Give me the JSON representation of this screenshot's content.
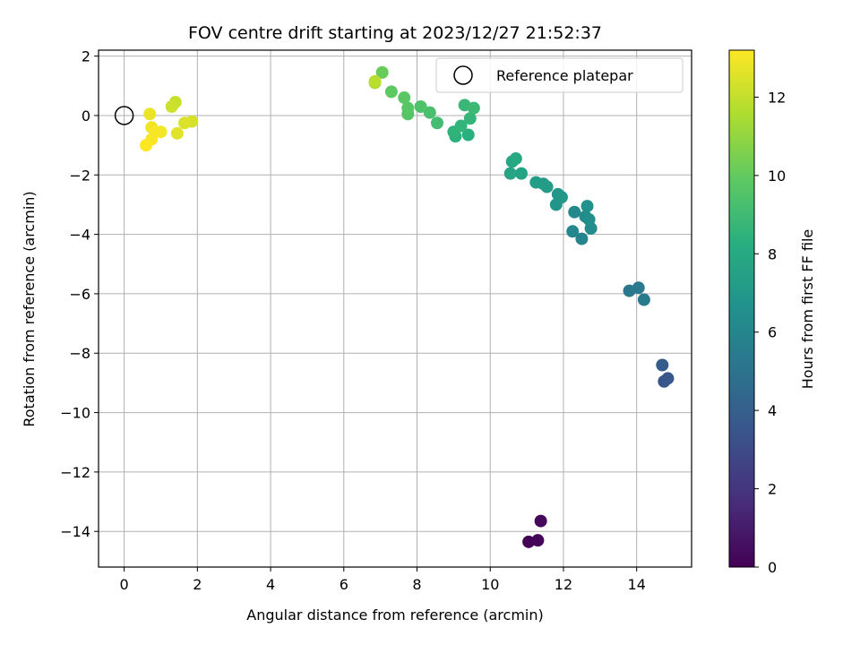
{
  "chart_data": {
    "type": "scatter",
    "title": "FOV centre drift starting at 2023/12/27 21:52:37",
    "xlabel": "Angular distance from reference (arcmin)",
    "ylabel": "Rotation from reference (arcmin)",
    "xlim": [
      -0.7,
      15.5
    ],
    "ylim": [
      -15.2,
      2.2
    ],
    "xticks": [
      0,
      2,
      4,
      6,
      8,
      10,
      12,
      14
    ],
    "yticks": [
      2,
      0,
      -2,
      -4,
      -6,
      -8,
      -10,
      -12,
      -14
    ],
    "grid": true,
    "legend": {
      "placement": "top-right",
      "entries": [
        {
          "label": "Reference platepar",
          "marker": "open-circle"
        }
      ]
    },
    "reference_point": {
      "x": 0,
      "y": 0
    },
    "colorbar": {
      "label": "Hours from first FF file",
      "range": [
        0,
        13.2
      ],
      "ticks": [
        0,
        2,
        4,
        6,
        8,
        10,
        12
      ],
      "colormap": "viridis"
    },
    "points": [
      {
        "x": 11.05,
        "y": -14.35,
        "h": 0.1
      },
      {
        "x": 11.3,
        "y": -14.3,
        "h": 0.2
      },
      {
        "x": 11.38,
        "y": -13.65,
        "h": 0.3
      },
      {
        "x": 14.75,
        "y": -8.95,
        "h": 3.5
      },
      {
        "x": 14.85,
        "y": -8.85,
        "h": 3.6
      },
      {
        "x": 14.7,
        "y": -8.4,
        "h": 3.8
      },
      {
        "x": 13.8,
        "y": -5.9,
        "h": 5.2
      },
      {
        "x": 14.05,
        "y": -5.8,
        "h": 5.3
      },
      {
        "x": 14.2,
        "y": -6.2,
        "h": 5.4
      },
      {
        "x": 12.5,
        "y": -4.15,
        "h": 5.9
      },
      {
        "x": 12.25,
        "y": -3.9,
        "h": 6.0
      },
      {
        "x": 12.3,
        "y": -3.25,
        "h": 6.1
      },
      {
        "x": 12.6,
        "y": -3.4,
        "h": 6.3
      },
      {
        "x": 12.75,
        "y": -3.8,
        "h": 6.4
      },
      {
        "x": 12.7,
        "y": -3.5,
        "h": 6.5
      },
      {
        "x": 12.65,
        "y": -3.05,
        "h": 6.6
      },
      {
        "x": 11.8,
        "y": -3.0,
        "h": 6.8
      },
      {
        "x": 11.85,
        "y": -2.65,
        "h": 6.9
      },
      {
        "x": 11.95,
        "y": -2.75,
        "h": 7.0
      },
      {
        "x": 11.45,
        "y": -2.3,
        "h": 7.1
      },
      {
        "x": 11.55,
        "y": -2.4,
        "h": 7.2
      },
      {
        "x": 11.25,
        "y": -2.25,
        "h": 7.3
      },
      {
        "x": 10.85,
        "y": -1.95,
        "h": 7.6
      },
      {
        "x": 10.55,
        "y": -1.95,
        "h": 7.7
      },
      {
        "x": 10.6,
        "y": -1.55,
        "h": 7.8
      },
      {
        "x": 10.7,
        "y": -1.45,
        "h": 7.9
      },
      {
        "x": 9.4,
        "y": -0.65,
        "h": 8.3
      },
      {
        "x": 9.05,
        "y": -0.7,
        "h": 8.4
      },
      {
        "x": 9.0,
        "y": -0.55,
        "h": 8.5
      },
      {
        "x": 9.2,
        "y": -0.35,
        "h": 8.6
      },
      {
        "x": 9.45,
        "y": -0.1,
        "h": 8.7
      },
      {
        "x": 9.3,
        "y": 0.35,
        "h": 8.8
      },
      {
        "x": 9.55,
        "y": 0.25,
        "h": 8.9
      },
      {
        "x": 8.55,
        "y": -0.25,
        "h": 9.1
      },
      {
        "x": 8.35,
        "y": 0.1,
        "h": 9.3
      },
      {
        "x": 8.1,
        "y": 0.3,
        "h": 9.4
      },
      {
        "x": 7.75,
        "y": 0.05,
        "h": 9.6
      },
      {
        "x": 7.75,
        "y": 0.25,
        "h": 9.7
      },
      {
        "x": 7.65,
        "y": 0.6,
        "h": 9.8
      },
      {
        "x": 7.3,
        "y": 0.8,
        "h": 9.9
      },
      {
        "x": 7.05,
        "y": 1.45,
        "h": 10.1
      },
      {
        "x": 6.85,
        "y": 1.1,
        "h": 11.6
      },
      {
        "x": 6.85,
        "y": 1.15,
        "h": 11.8
      },
      {
        "x": 1.4,
        "y": 0.45,
        "h": 12.1
      },
      {
        "x": 1.3,
        "y": 0.3,
        "h": 12.2
      },
      {
        "x": 1.85,
        "y": -0.2,
        "h": 12.4
      },
      {
        "x": 1.65,
        "y": -0.25,
        "h": 12.5
      },
      {
        "x": 1.45,
        "y": -0.6,
        "h": 12.6
      },
      {
        "x": 0.7,
        "y": 0.05,
        "h": 12.8
      },
      {
        "x": 0.75,
        "y": -0.4,
        "h": 12.9
      },
      {
        "x": 1.0,
        "y": -0.55,
        "h": 13.0
      },
      {
        "x": 0.85,
        "y": -0.55,
        "h": 13.05
      },
      {
        "x": 0.75,
        "y": -0.8,
        "h": 13.1
      },
      {
        "x": 0.6,
        "y": -1.0,
        "h": 13.2
      }
    ]
  }
}
